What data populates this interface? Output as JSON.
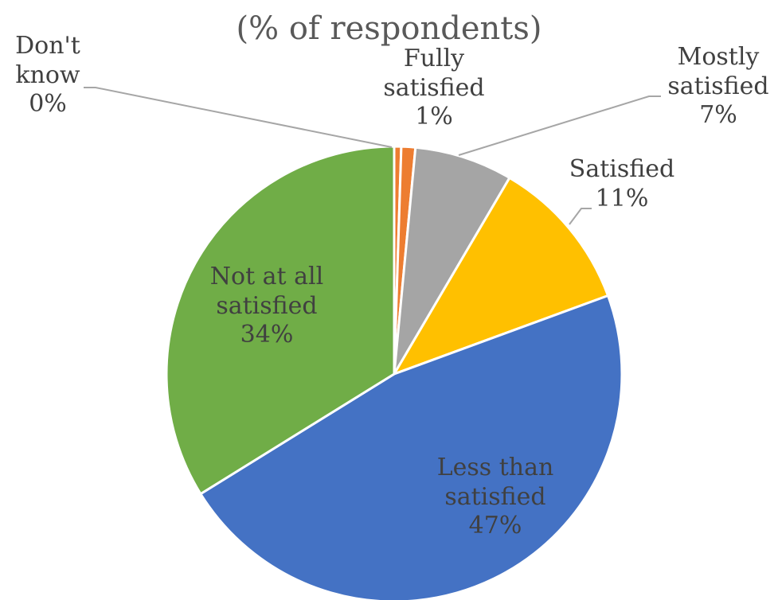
{
  "chart_data": {
    "type": "pie",
    "title": "(% of respondents)",
    "start_angle_deg": 0,
    "direction": "clockwise",
    "slices": [
      {
        "label_lines": [
          "Don't",
          "know"
        ],
        "value": 0.5,
        "value_label": "0%",
        "color": "#ED7D31"
      },
      {
        "label_lines": [
          "Fully",
          "satisfied"
        ],
        "value": 1,
        "value_label": "1%",
        "color": "#ED7D31"
      },
      {
        "label_lines": [
          "Mostly",
          "satisfied"
        ],
        "value": 7,
        "value_label": "7%",
        "color": "#A5A5A5"
      },
      {
        "label_lines": [
          "Satisfied"
        ],
        "value": 11,
        "value_label": "11%",
        "color": "#FFC000"
      },
      {
        "label_lines": [
          "Less than",
          "satisfied"
        ],
        "value": 47,
        "value_label": "47%",
        "color": "#4472C4"
      },
      {
        "label_lines": [
          "Not at all",
          "satisfied"
        ],
        "value": 34,
        "value_label": "34%",
        "color": "#70AD47"
      }
    ]
  }
}
